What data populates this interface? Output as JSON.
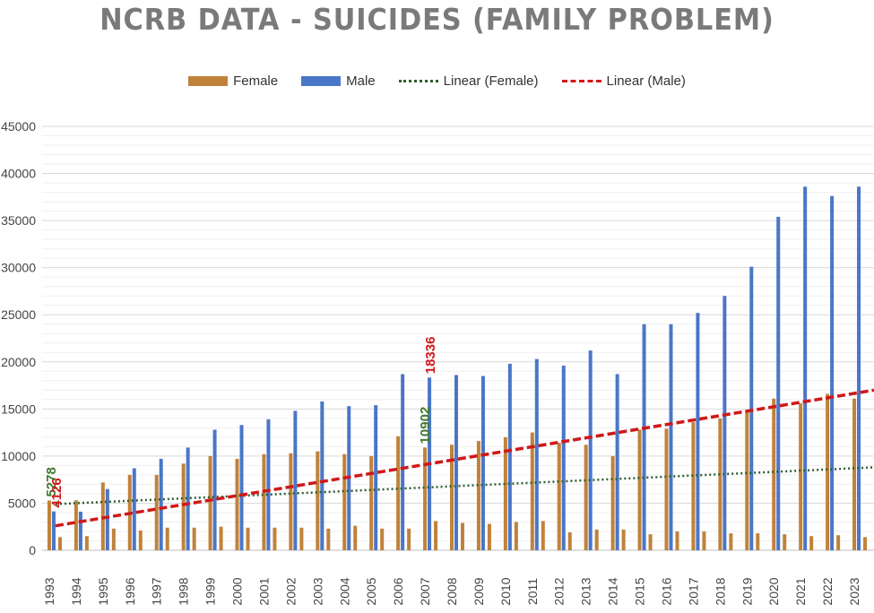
{
  "chart_data": {
    "type": "bar",
    "title": "NCRB DATA - SUICIDES (FAMILY PROBLEM)",
    "xlabel": "",
    "ylabel": "",
    "ylim": [
      0,
      45000
    ],
    "yticks": [
      0,
      5000,
      10000,
      15000,
      20000,
      25000,
      30000,
      35000,
      40000,
      45000
    ],
    "categories": [
      "1993",
      "1994",
      "1995",
      "1996",
      "1997",
      "1998",
      "1999",
      "2000",
      "2001",
      "2002",
      "2003",
      "2004",
      "2005",
      "2006",
      "2007",
      "2008",
      "2009",
      "2010",
      "2011",
      "2012",
      "2013",
      "2014",
      "2015",
      "2016",
      "2017",
      "2018",
      "2019",
      "2020",
      "2021",
      "2022",
      "2023"
    ],
    "series": [
      {
        "name": "Female",
        "color": "#c0823a",
        "values": [
          5278,
          5300,
          7200,
          8000,
          8000,
          9200,
          10000,
          9700,
          10200,
          10300,
          10500,
          10200,
          10000,
          12100,
          10902,
          11200,
          11600,
          12000,
          12500,
          11400,
          11200,
          10000,
          12800,
          12900,
          13600,
          14000,
          14800,
          16100,
          15600,
          16600,
          16100
        ]
      },
      {
        "name": "Male",
        "color": "#4a76c8",
        "values": [
          4126,
          4100,
          6500,
          8700,
          9700,
          10900,
          12800,
          13300,
          13900,
          14800,
          15800,
          15300,
          15400,
          18700,
          18336,
          18600,
          18500,
          19800,
          20300,
          19600,
          21200,
          18700,
          24000,
          24000,
          25200,
          27000,
          30100,
          35400,
          38600,
          37600,
          38600
        ]
      },
      {
        "name": "Linear (Female)",
        "type": "trendline",
        "color": "#2e5e2e",
        "style": "dotted",
        "start": 4900,
        "end": 8800
      },
      {
        "name": "Linear (Male)",
        "type": "trendline",
        "color": "#d01818",
        "style": "dashed",
        "start": 2600,
        "end": 17000
      }
    ],
    "secondary_bars": {
      "color": "#c0823a",
      "values": [
        1400,
        1500,
        2300,
        2100,
        2400,
        2400,
        2500,
        2400,
        2400,
        2400,
        2300,
        2600,
        2300,
        2300,
        3100,
        2900,
        2800,
        3000,
        3100,
        1900,
        2200,
        2200,
        1700,
        2000,
        2000,
        1800,
        1800,
        1700,
        1500,
        1600,
        1400
      ]
    },
    "annotations": [
      {
        "text": "5278",
        "year": "1993",
        "color": "#3e7a2e"
      },
      {
        "text": "4126",
        "year": "1993",
        "color": "#d01818"
      },
      {
        "text": "10902",
        "year": "2007",
        "color": "#3e7a2e"
      },
      {
        "text": "18336",
        "year": "2007",
        "color": "#d01818"
      }
    ],
    "legend_position": "top",
    "grid": true
  }
}
